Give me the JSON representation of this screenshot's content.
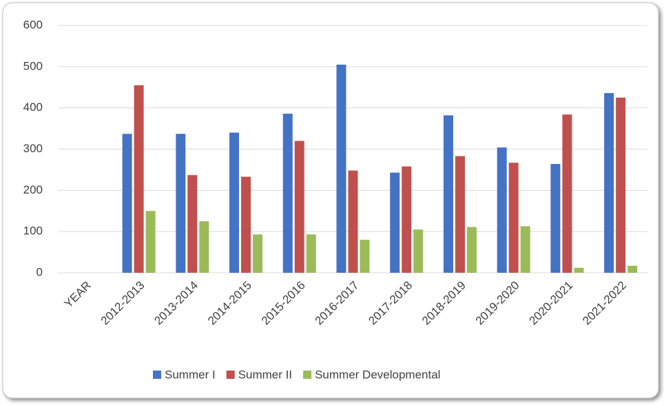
{
  "chart_data": {
    "type": "bar",
    "categories": [
      "YEAR",
      "2012-2013",
      "2013-2014",
      "2014-2015",
      "2015-2016",
      "2016-2017",
      "2017-2018",
      "2018-2019",
      "2019-2020",
      "2020-2021",
      "2021-2022"
    ],
    "series": [
      {
        "name": "Summer I",
        "color": "#4472c4",
        "values": [
          null,
          337,
          337,
          340,
          386,
          505,
          243,
          382,
          304,
          264,
          436
        ]
      },
      {
        "name": "Summer II",
        "color": "#c0504d",
        "values": [
          null,
          455,
          237,
          233,
          320,
          248,
          258,
          283,
          267,
          384,
          425
        ]
      },
      {
        "name": "Summer Developmental",
        "color": "#9bbb59",
        "values": [
          null,
          150,
          125,
          93,
          93,
          80,
          105,
          111,
          113,
          12,
          17
        ]
      }
    ],
    "ylim": [
      0,
      600
    ],
    "yticks": [
      0,
      100,
      200,
      300,
      400,
      500,
      600
    ],
    "grid": true,
    "legend": "bottom"
  }
}
